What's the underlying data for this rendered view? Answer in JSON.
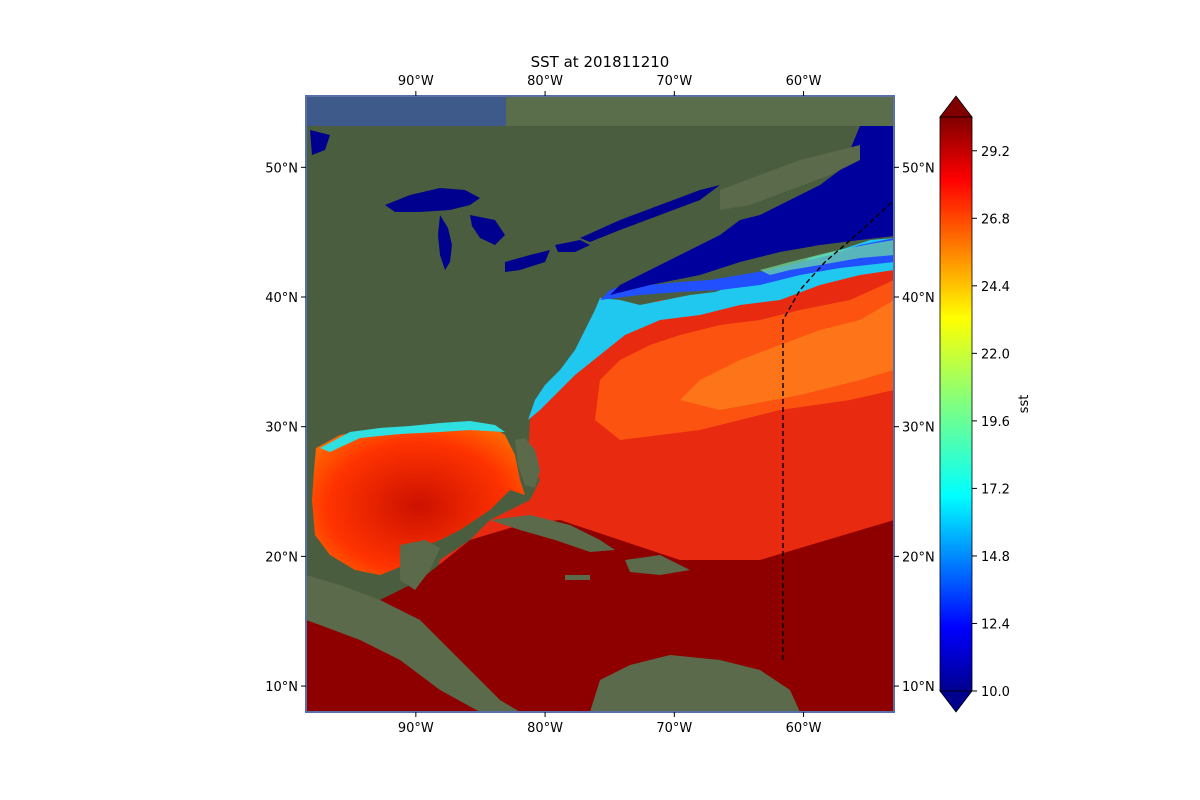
{
  "title": "SST at 201811210",
  "map": {
    "lon_range": [
      -98.5,
      -53
    ],
    "lat_range": [
      8,
      55.5
    ],
    "lon_ticks": [
      {
        "value": -90,
        "label": "90°W"
      },
      {
        "value": -80,
        "label": "80°W"
      },
      {
        "value": -70,
        "label": "70°W"
      },
      {
        "value": -60,
        "label": "60°W"
      }
    ],
    "lat_ticks": [
      {
        "value": 50,
        "label": "50°N"
      },
      {
        "value": 40,
        "label": "40°N"
      },
      {
        "value": 30,
        "label": "30°N"
      },
      {
        "value": 20,
        "label": "20°N"
      },
      {
        "value": 10,
        "label": "10°N"
      }
    ],
    "basemap": "satellite imagery",
    "boundary_line": "black dashed line"
  },
  "colorbar": {
    "label": "sst",
    "colormap": "jet",
    "extend": "both",
    "min": 10.0,
    "max": 30.4,
    "ticks": [
      {
        "value": 10.0,
        "label": "10.0"
      },
      {
        "value": 12.4,
        "label": "12.4"
      },
      {
        "value": 14.8,
        "label": "14.8"
      },
      {
        "value": 17.2,
        "label": "17.2"
      },
      {
        "value": 19.6,
        "label": "19.6"
      },
      {
        "value": 22.0,
        "label": "22.0"
      },
      {
        "value": 24.4,
        "label": "24.4"
      },
      {
        "value": 26.8,
        "label": "26.8"
      },
      {
        "value": 29.2,
        "label": "29.2"
      }
    ]
  },
  "colors": {
    "ocean_cold": "#00008b",
    "ocean_mid": "#00bfff",
    "ocean_warm": "#ff6a00",
    "ocean_hot": "#8b0000",
    "land": "#4a5e3e",
    "land_light": "#6b7a5a",
    "frame_blue": "#5a6fa8"
  }
}
